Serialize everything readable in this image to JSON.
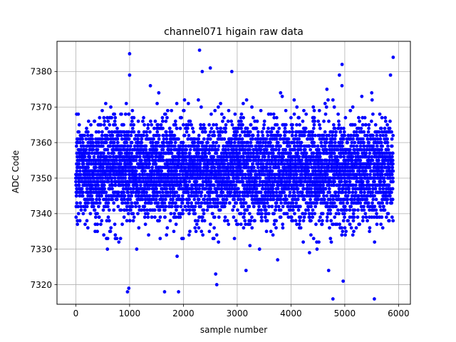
{
  "chart_data": {
    "type": "scatter",
    "title": "channel071 higain raw data",
    "xlabel": "sample number",
    "ylabel": "ADC Code",
    "xlim": [
      -350,
      6220
    ],
    "ylim": [
      7314.5,
      7388.5
    ],
    "xticks": [
      0,
      1000,
      2000,
      3000,
      4000,
      5000,
      6000
    ],
    "yticks": [
      7320,
      7330,
      7340,
      7350,
      7360,
      7370,
      7380
    ],
    "grid": true,
    "marker_color": "#0000ff",
    "series": [
      {
        "name": "",
        "points_note": "approx. 5900 samples, 1 per sample number from 0 to ~5900; bulk spread 7335-7370, mean ~7352",
        "representative_points": [
          [
            1000,
            7385
          ],
          [
            2300,
            7386
          ],
          [
            2350,
            7380
          ],
          [
            2500,
            7381
          ],
          [
            2900,
            7380
          ],
          [
            4950,
            7382
          ],
          [
            5900,
            7384
          ],
          [
            4900,
            7379
          ],
          [
            5850,
            7379
          ],
          [
            1000,
            7379
          ],
          [
            2600,
            7323
          ],
          [
            4780,
            7316
          ],
          [
            5550,
            7316
          ],
          [
            960,
            7318
          ],
          [
            985,
            7319
          ],
          [
            1650,
            7318
          ],
          [
            1910,
            7318
          ],
          [
            4970,
            7321
          ],
          [
            2620,
            7320
          ],
          [
            4700,
            7324
          ]
        ]
      }
    ],
    "stats": {
      "n": 5900,
      "mean": 7352,
      "sd": 7
    }
  }
}
